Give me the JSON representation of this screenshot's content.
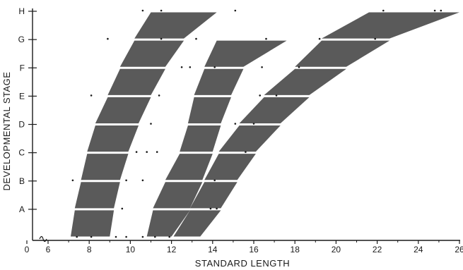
{
  "chart_data": {
    "type": "area",
    "xlabel": "STANDARD LENGTH",
    "ylabel": "DEVELOPMENTAL STAGE",
    "xlim": [
      0,
      26
    ],
    "x_axis_break_after": 0,
    "x_tick_labels": [
      "0",
      "6",
      "8",
      "10",
      "12",
      "14",
      "16",
      "18",
      "20",
      "22",
      "24",
      "26"
    ],
    "x_ticks": [
      0,
      6,
      8,
      10,
      12,
      14,
      16,
      18,
      20,
      22,
      24,
      26
    ],
    "stages": [
      "A",
      "B",
      "C",
      "D",
      "E",
      "F",
      "G",
      "H"
    ],
    "grid": false,
    "series": [
      {
        "bands": [
          {
            "stage_from": "A0",
            "stage_to": "A",
            "min_bottom": 7.1,
            "max_bottom": 9.0,
            "min_top": 7.3,
            "max_top": 9.2
          },
          {
            "stage_from": "A",
            "stage_to": "B",
            "min_bottom": 7.3,
            "max_bottom": 9.2,
            "min_top": 7.6,
            "max_top": 9.5
          },
          {
            "stage_from": "B",
            "stage_to": "C",
            "min_bottom": 7.6,
            "max_bottom": 9.5,
            "min_top": 7.9,
            "max_top": 9.9
          },
          {
            "stage_from": "C",
            "stage_to": "D",
            "min_bottom": 7.9,
            "max_bottom": 9.9,
            "min_top": 8.3,
            "max_top": 10.4
          },
          {
            "stage_from": "D",
            "stage_to": "E",
            "min_bottom": 8.3,
            "max_bottom": 10.4,
            "min_top": 8.9,
            "max_top": 11.0
          },
          {
            "stage_from": "E",
            "stage_to": "F",
            "min_bottom": 8.9,
            "max_bottom": 11.0,
            "min_top": 9.5,
            "max_top": 11.7
          },
          {
            "stage_from": "F",
            "stage_to": "G",
            "min_bottom": 9.5,
            "max_bottom": 11.7,
            "min_top": 10.2,
            "max_top": 12.6
          },
          {
            "stage_from": "G",
            "stage_to": "H",
            "min_bottom": 10.2,
            "max_bottom": 12.6,
            "min_top": 11.0,
            "max_top": 14.2
          }
        ]
      },
      {
        "bands": [
          {
            "stage_from": "A0",
            "stage_to": "A",
            "min_bottom": 10.8,
            "max_bottom": 12.0,
            "min_top": 11.1,
            "max_top": 12.9
          },
          {
            "stage_from": "A",
            "stage_to": "B",
            "min_bottom": 11.1,
            "max_bottom": 12.9,
            "min_top": 11.7,
            "max_top": 13.5
          },
          {
            "stage_from": "B",
            "stage_to": "C",
            "min_bottom": 11.7,
            "max_bottom": 13.5,
            "min_top": 12.4,
            "max_top": 14.0
          },
          {
            "stage_from": "C",
            "stage_to": "D",
            "min_bottom": 12.4,
            "max_bottom": 14.0,
            "min_top": 12.8,
            "max_top": 14.4
          },
          {
            "stage_from": "D",
            "stage_to": "E",
            "min_bottom": 12.8,
            "max_bottom": 14.4,
            "min_top": 13.1,
            "max_top": 14.9
          },
          {
            "stage_from": "E",
            "stage_to": "F",
            "min_bottom": 13.1,
            "max_bottom": 14.9,
            "min_top": 13.6,
            "max_top": 15.5
          },
          {
            "stage_from": "F",
            "stage_to": "G",
            "min_bottom": 13.6,
            "max_bottom": 15.5,
            "min_top": 14.2,
            "max_top": 17.6
          }
        ]
      },
      {
        "bands": [
          {
            "stage_from": "A0",
            "stage_to": "A",
            "min_bottom": 12.1,
            "max_bottom": 13.4,
            "min_top": 12.9,
            "max_top": 14.4
          },
          {
            "stage_from": "A",
            "stage_to": "B",
            "min_bottom": 12.9,
            "max_bottom": 14.4,
            "min_top": 13.6,
            "max_top": 15.2
          },
          {
            "stage_from": "B",
            "stage_to": "C",
            "min_bottom": 13.6,
            "max_bottom": 15.2,
            "min_top": 14.3,
            "max_top": 16.1
          },
          {
            "stage_from": "C",
            "stage_to": "D",
            "min_bottom": 14.3,
            "max_bottom": 16.1,
            "min_top": 15.3,
            "max_top": 17.3
          },
          {
            "stage_from": "D",
            "stage_to": "E",
            "min_bottom": 15.3,
            "max_bottom": 17.3,
            "min_top": 16.5,
            "max_top": 18.7
          },
          {
            "stage_from": "E",
            "stage_to": "F",
            "min_bottom": 16.5,
            "max_bottom": 18.7,
            "min_top": 18.0,
            "max_top": 20.5
          },
          {
            "stage_from": "F",
            "stage_to": "G",
            "min_bottom": 18.0,
            "max_bottom": 20.5,
            "min_top": 19.3,
            "max_top": 22.6
          },
          {
            "stage_from": "G",
            "stage_to": "H",
            "min_bottom": 19.3,
            "max_bottom": 22.6,
            "min_top": 21.6,
            "max_top": 26.0
          }
        ]
      }
    ],
    "points": [
      {
        "x": 7.4,
        "stage": "A0"
      },
      {
        "x": 8.1,
        "stage": "A0"
      },
      {
        "x": 9.3,
        "stage": "A0"
      },
      {
        "x": 9.8,
        "stage": "A0"
      },
      {
        "x": 10.6,
        "stage": "A0"
      },
      {
        "x": 11.2,
        "stage": "A0"
      },
      {
        "x": 11.9,
        "stage": "A0"
      },
      {
        "x": 9.6,
        "stage": "A"
      },
      {
        "x": 13.9,
        "stage": "A"
      },
      {
        "x": 14.2,
        "stage": "A"
      },
      {
        "x": 7.2,
        "stage": "B"
      },
      {
        "x": 9.8,
        "stage": "B"
      },
      {
        "x": 10.6,
        "stage": "B"
      },
      {
        "x": 14.1,
        "stage": "B"
      },
      {
        "x": 10.3,
        "stage": "C"
      },
      {
        "x": 10.8,
        "stage": "C"
      },
      {
        "x": 11.3,
        "stage": "C"
      },
      {
        "x": 15.6,
        "stage": "C"
      },
      {
        "x": 11.0,
        "stage": "D"
      },
      {
        "x": 15.1,
        "stage": "D"
      },
      {
        "x": 16.0,
        "stage": "D"
      },
      {
        "x": 8.1,
        "stage": "E"
      },
      {
        "x": 11.4,
        "stage": "E"
      },
      {
        "x": 16.3,
        "stage": "E"
      },
      {
        "x": 17.1,
        "stage": "E"
      },
      {
        "x": 12.5,
        "stage": "F"
      },
      {
        "x": 12.9,
        "stage": "F"
      },
      {
        "x": 14.1,
        "stage": "F"
      },
      {
        "x": 16.4,
        "stage": "F"
      },
      {
        "x": 18.2,
        "stage": "F"
      },
      {
        "x": 8.9,
        "stage": "G"
      },
      {
        "x": 11.5,
        "stage": "G"
      },
      {
        "x": 13.2,
        "stage": "G"
      },
      {
        "x": 16.6,
        "stage": "G"
      },
      {
        "x": 19.2,
        "stage": "G"
      },
      {
        "x": 21.9,
        "stage": "G"
      },
      {
        "x": 10.6,
        "stage": "H"
      },
      {
        "x": 11.5,
        "stage": "H"
      },
      {
        "x": 15.1,
        "stage": "H"
      },
      {
        "x": 22.3,
        "stage": "H"
      },
      {
        "x": 24.8,
        "stage": "H"
      },
      {
        "x": 25.1,
        "stage": "H"
      }
    ]
  },
  "style": {
    "band_color": "#5a5a5a",
    "ink_color": "#1a1a1a",
    "background": "#ffffff"
  }
}
